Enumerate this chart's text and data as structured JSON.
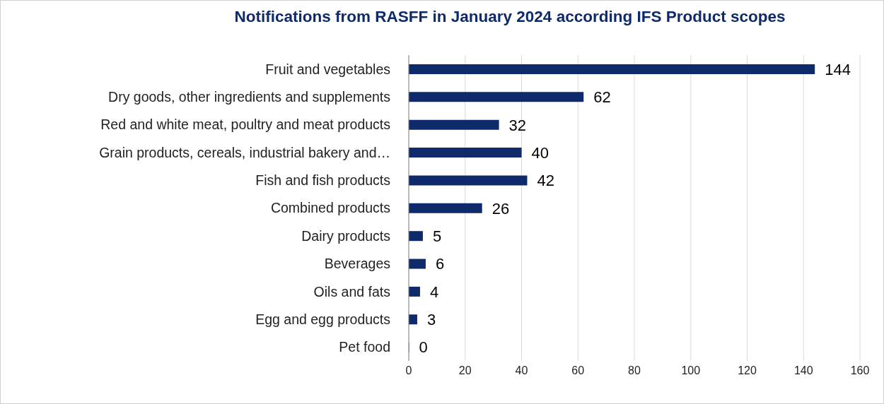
{
  "chart_data": {
    "type": "bar",
    "orientation": "horizontal",
    "title": "Notifications from RASFF in January 2024 according IFS Product scopes",
    "categories": [
      "Fruit and vegetables",
      "Dry goods, other ingredients and supplements",
      "Red and white meat, poultry and meat products",
      "Grain products, cereals, industrial bakery and…",
      "Fish and fish products",
      "Combined products",
      "Dairy products",
      "Beverages",
      "Oils and fats",
      "Egg and egg products",
      "Pet food"
    ],
    "values": [
      144,
      62,
      32,
      40,
      42,
      26,
      5,
      6,
      4,
      3,
      0
    ],
    "color": "#0e2a6b",
    "xlim": [
      0,
      160
    ],
    "xticks": [
      0,
      20,
      40,
      60,
      80,
      100,
      120,
      140,
      160
    ],
    "grid": "x",
    "legend": false,
    "data_labels": true
  }
}
